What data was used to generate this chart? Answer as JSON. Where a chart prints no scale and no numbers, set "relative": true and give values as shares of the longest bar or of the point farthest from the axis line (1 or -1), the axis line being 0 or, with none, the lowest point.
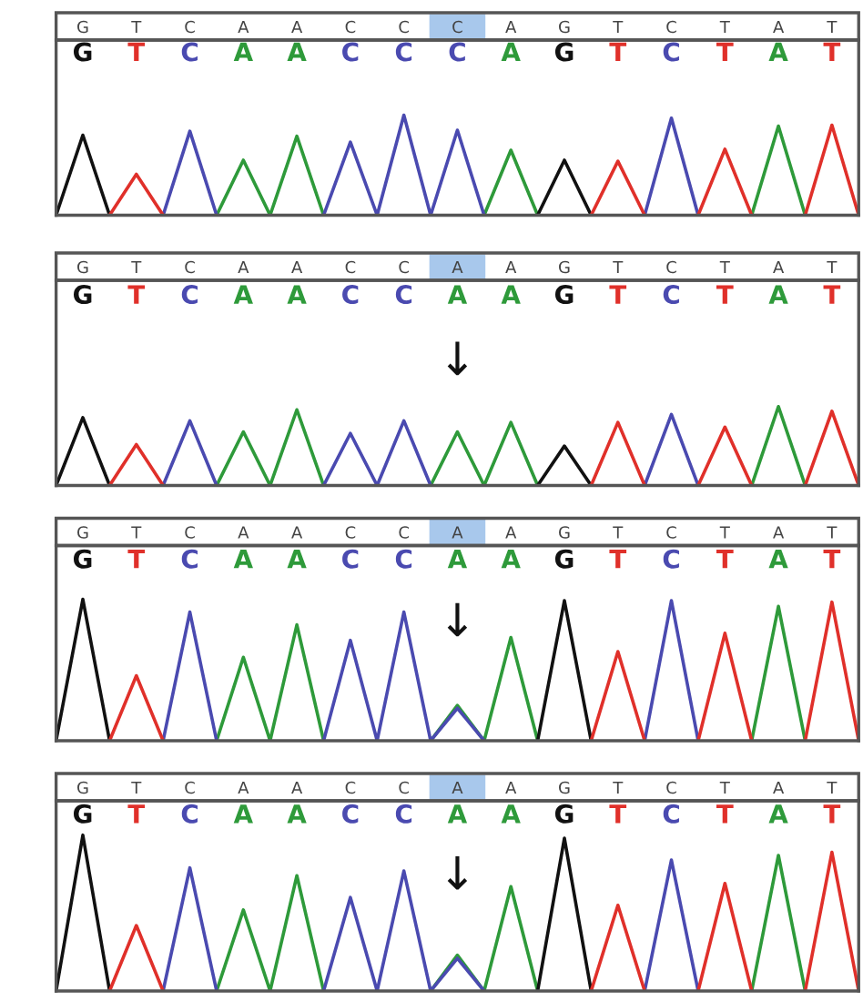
{
  "chart_data": [
    {
      "type": "line",
      "relative": true,
      "categories": [
        null,
        "G",
        null,
        "T",
        null,
        "C",
        null,
        "A",
        null,
        "A",
        null,
        "C",
        null,
        "C",
        null,
        "C",
        null,
        "A",
        null,
        "G",
        null,
        "T",
        null,
        "C",
        null,
        "T",
        null,
        "A",
        null,
        "T",
        null
      ],
      "series": [
        {
          "color": "#2e9a3a",
          "values": [
            null,
            null,
            null,
            null,
            null,
            null,
            0,
            0.55,
            0,
            0.79,
            0,
            null,
            null,
            null,
            null,
            null,
            0,
            0.65,
            0,
            null,
            null,
            null,
            null,
            null,
            null,
            null,
            0,
            0.89,
            0,
            null,
            null
          ]
        },
        {
          "color": "#4a4ab0",
          "values": [
            null,
            null,
            null,
            null,
            0,
            0.84,
            0,
            null,
            null,
            null,
            0,
            0.73,
            0,
            1,
            0,
            0.85,
            0,
            null,
            null,
            null,
            null,
            null,
            0,
            0.97,
            0,
            null,
            null,
            null,
            null,
            null,
            null
          ]
        },
        {
          "color": "#111111",
          "values": [
            0,
            0.8,
            0,
            null,
            null,
            null,
            null,
            null,
            null,
            null,
            null,
            null,
            null,
            null,
            null,
            null,
            null,
            null,
            0,
            0.55,
            0,
            null,
            null,
            null,
            null,
            null,
            null,
            null,
            null,
            null,
            null
          ]
        },
        {
          "color": "#e0302a",
          "values": [
            null,
            null,
            0,
            0.41,
            0,
            null,
            null,
            null,
            null,
            null,
            null,
            null,
            null,
            null,
            null,
            null,
            null,
            null,
            null,
            null,
            0,
            0.54,
            0,
            null,
            0,
            0.66,
            0,
            null,
            0,
            0.9,
            0
          ]
        }
      ]
    },
    {
      "type": "line",
      "relative": true,
      "categories": [
        null,
        "G",
        null,
        "T",
        null,
        "C",
        null,
        "A",
        null,
        "A",
        null,
        "C",
        null,
        "C",
        null,
        "A",
        null,
        "A",
        null,
        "G",
        null,
        "T",
        null,
        "C",
        null,
        "T",
        null,
        "A",
        null,
        "T",
        null
      ],
      "annotations": [
        "↓"
      ],
      "series": [
        {
          "color": "#2e9a3a",
          "values": [
            null,
            null,
            null,
            null,
            null,
            null,
            0,
            0.68,
            0,
            0.96,
            0,
            null,
            null,
            null,
            0,
            0.68,
            0,
            0.8,
            0,
            null,
            null,
            null,
            null,
            null,
            null,
            null,
            0,
            1,
            0,
            null,
            null
          ]
        },
        {
          "color": "#4a4ab0",
          "values": [
            null,
            null,
            null,
            null,
            0,
            0.82,
            0,
            null,
            null,
            null,
            0,
            0.66,
            0,
            0.82,
            0,
            null,
            null,
            null,
            null,
            null,
            null,
            null,
            0,
            0.9,
            0,
            null,
            null,
            null,
            null,
            null,
            null
          ]
        },
        {
          "color": "#111111",
          "values": [
            0,
            0.86,
            0,
            null,
            null,
            null,
            null,
            null,
            null,
            null,
            null,
            null,
            null,
            null,
            null,
            null,
            null,
            null,
            0,
            0.5,
            0,
            null,
            null,
            null,
            null,
            null,
            null,
            null,
            null,
            null,
            null
          ]
        },
        {
          "color": "#e0302a",
          "values": [
            null,
            null,
            0,
            0.52,
            0,
            null,
            null,
            null,
            null,
            null,
            null,
            null,
            null,
            null,
            null,
            null,
            null,
            null,
            null,
            null,
            0,
            0.8,
            0,
            null,
            0,
            0.74,
            0,
            null,
            0,
            0.94,
            0
          ]
        }
      ]
    },
    {
      "type": "line",
      "relative": true,
      "categories": [
        null,
        "G",
        null,
        "T",
        null,
        "C",
        null,
        "A",
        null,
        "A",
        null,
        "C",
        null,
        "C",
        null,
        "A",
        null,
        "A",
        null,
        "G",
        null,
        "T",
        null,
        "C",
        null,
        "T",
        null,
        "A",
        null,
        "T",
        null
      ],
      "annotations": [
        "↓"
      ],
      "series": [
        {
          "color": "#2e9a3a",
          "values": [
            null,
            null,
            null,
            null,
            null,
            null,
            0,
            0.59,
            0,
            0.82,
            0,
            null,
            null,
            null,
            0,
            0.25,
            0,
            0.73,
            0,
            null,
            null,
            null,
            null,
            null,
            null,
            null,
            0,
            0.95,
            0,
            null,
            null
          ]
        },
        {
          "color": "#4a4ab0",
          "values": [
            null,
            null,
            null,
            null,
            0,
            0.91,
            0,
            null,
            null,
            null,
            0,
            0.71,
            0,
            0.91,
            0,
            0.23,
            0,
            null,
            null,
            null,
            null,
            null,
            0,
            0.99,
            0,
            null,
            null,
            null,
            null,
            null,
            null
          ]
        },
        {
          "color": "#111111",
          "values": [
            0,
            1,
            0,
            null,
            null,
            null,
            null,
            null,
            null,
            null,
            null,
            null,
            null,
            null,
            null,
            null,
            null,
            null,
            0,
            0.99,
            0,
            null,
            null,
            null,
            null,
            null,
            null,
            null,
            null,
            null,
            null
          ]
        },
        {
          "color": "#e0302a",
          "values": [
            null,
            null,
            0,
            0.46,
            0,
            null,
            null,
            null,
            null,
            null,
            null,
            null,
            null,
            null,
            null,
            null,
            null,
            null,
            null,
            null,
            0,
            0.63,
            0,
            null,
            0,
            0.76,
            0,
            null,
            0,
            0.98,
            0
          ]
        }
      ]
    },
    {
      "type": "line",
      "relative": true,
      "categories": [
        null,
        "G",
        null,
        "T",
        null,
        "C",
        null,
        "A",
        null,
        "A",
        null,
        "C",
        null,
        "C",
        null,
        "A",
        null,
        "A",
        null,
        "G",
        null,
        "T",
        null,
        "C",
        null,
        "T",
        null,
        "A",
        null,
        "T",
        null
      ],
      "annotations": [
        "↓"
      ],
      "series": [
        {
          "color": "#2e9a3a",
          "values": [
            null,
            null,
            null,
            null,
            null,
            null,
            0,
            0.52,
            0,
            0.74,
            0,
            null,
            null,
            null,
            0,
            0.23,
            0,
            0.67,
            0,
            null,
            null,
            null,
            null,
            null,
            null,
            null,
            0,
            0.87,
            0,
            null,
            null
          ]
        },
        {
          "color": "#4a4ab0",
          "values": [
            null,
            null,
            null,
            null,
            0,
            0.79,
            0,
            null,
            null,
            null,
            0,
            0.6,
            0,
            0.77,
            0,
            0.21,
            0,
            null,
            null,
            null,
            null,
            null,
            0,
            0.84,
            0,
            null,
            null,
            null,
            null,
            null,
            null
          ]
        },
        {
          "color": "#111111",
          "values": [
            0,
            1,
            0,
            null,
            null,
            null,
            null,
            null,
            null,
            null,
            null,
            null,
            null,
            null,
            null,
            null,
            null,
            null,
            0,
            0.98,
            0,
            null,
            null,
            null,
            null,
            null,
            null,
            null,
            null,
            null,
            null
          ]
        },
        {
          "color": "#e0302a",
          "values": [
            null,
            null,
            0,
            0.42,
            0,
            null,
            null,
            null,
            null,
            null,
            null,
            null,
            null,
            null,
            null,
            null,
            null,
            null,
            null,
            null,
            0,
            0.55,
            0,
            null,
            0,
            0.69,
            0,
            null,
            0,
            0.89,
            0
          ]
        }
      ]
    }
  ]
}
